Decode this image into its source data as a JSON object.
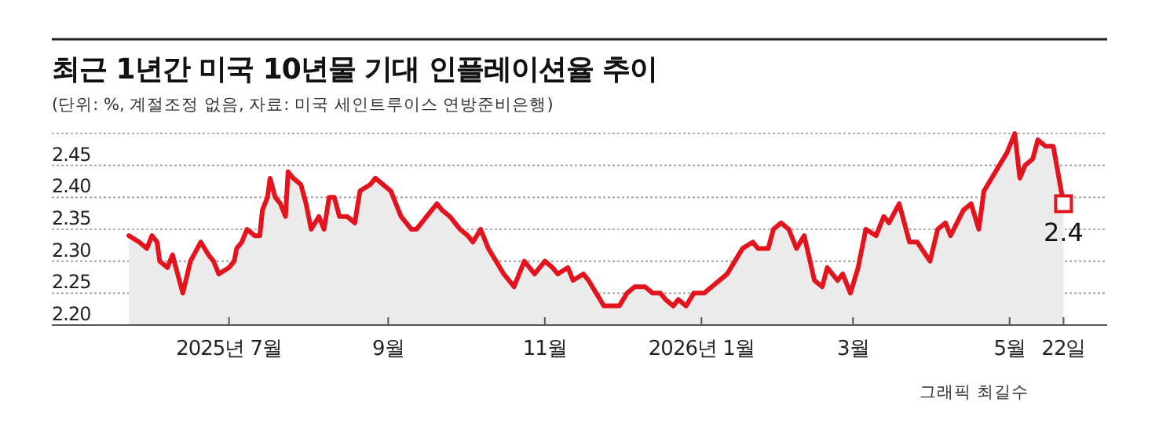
{
  "chart_data": {
    "type": "area",
    "title": "최근 1년간 미국 10년물 기대 인플레이션율 추이",
    "subtitle": "(단위: %, 계절조정 없음, 자료: 미국 세인트루이스 연방준비은행)",
    "annotations": [
      {
        "text": "2.4",
        "x": "2026-05-22",
        "y": 2.39
      },
      "그래픽 최길수"
    ],
    "x": [
      "2025-05-23",
      "2025-05-27",
      "2025-05-30",
      "2025-06-01",
      "2025-06-03",
      "2025-06-04",
      "2025-06-07",
      "2025-06-09",
      "2025-06-13",
      "2025-06-16",
      "2025-06-20",
      "2025-06-23",
      "2025-06-25",
      "2025-06-27",
      "2025-07-01",
      "2025-07-03",
      "2025-07-04",
      "2025-07-06",
      "2025-07-08",
      "2025-07-11",
      "2025-07-13",
      "2025-07-14",
      "2025-07-16",
      "2025-07-17",
      "2025-07-19",
      "2025-07-21",
      "2025-07-23",
      "2025-07-24",
      "2025-07-26",
      "2025-07-29",
      "2025-07-31",
      "2025-08-02",
      "2025-08-05",
      "2025-08-07",
      "2025-08-09",
      "2025-08-11",
      "2025-08-13",
      "2025-08-16",
      "2025-08-19",
      "2025-08-21",
      "2025-08-25",
      "2025-08-27",
      "2025-08-30",
      "2025-09-02",
      "2025-09-06",
      "2025-09-10",
      "2025-09-12",
      "2025-09-16",
      "2025-09-20",
      "2025-09-22",
      "2025-09-25",
      "2025-09-27",
      "2025-09-29",
      "2025-10-02",
      "2025-10-04",
      "2025-10-07",
      "2025-10-10",
      "2025-10-13",
      "2025-10-16",
      "2025-10-20",
      "2025-10-24",
      "2025-10-28",
      "2025-11-01",
      "2025-11-04",
      "2025-11-06",
      "2025-11-10",
      "2025-11-12",
      "2025-11-16",
      "2025-11-18",
      "2025-11-21",
      "2025-11-24",
      "2025-11-27",
      "2025-11-30",
      "2025-12-03",
      "2025-12-06",
      "2025-12-10",
      "2025-12-13",
      "2025-12-16",
      "2025-12-18",
      "2025-12-21",
      "2025-12-23",
      "2025-12-26",
      "2025-12-29",
      "2026-01-02",
      "2026-01-05",
      "2026-01-08",
      "2026-01-11",
      "2026-01-14",
      "2026-01-17",
      "2026-01-21",
      "2026-01-23",
      "2026-01-27",
      "2026-01-29",
      "2026-02-01",
      "2026-02-04",
      "2026-02-07",
      "2026-02-10",
      "2026-02-14",
      "2026-02-17",
      "2026-02-19",
      "2026-02-23",
      "2026-02-25",
      "2026-02-28",
      "2026-03-03",
      "2026-03-06",
      "2026-03-10",
      "2026-03-13",
      "2026-03-15",
      "2026-03-19",
      "2026-03-23",
      "2026-03-26",
      "2026-03-31",
      "2026-04-03",
      "2026-04-06",
      "2026-04-08",
      "2026-04-13",
      "2026-04-16",
      "2026-04-19",
      "2026-04-21",
      "2026-04-24",
      "2026-04-27",
      "2026-04-30",
      "2026-05-03",
      "2026-05-05",
      "2026-05-07",
      "2026-05-10",
      "2026-05-12",
      "2026-05-15",
      "2026-05-18",
      "2026-05-22"
    ],
    "series": [
      {
        "color": "#e3141d",
        "values": [
          2.34,
          2.33,
          2.32,
          2.34,
          2.33,
          2.3,
          2.29,
          2.31,
          2.25,
          2.3,
          2.33,
          2.31,
          2.3,
          2.28,
          2.29,
          2.3,
          2.32,
          2.33,
          2.35,
          2.34,
          2.34,
          2.38,
          2.4,
          2.43,
          2.4,
          2.39,
          2.37,
          2.44,
          2.43,
          2.42,
          2.39,
          2.35,
          2.37,
          2.35,
          2.4,
          2.4,
          2.37,
          2.37,
          2.36,
          2.41,
          2.42,
          2.43,
          2.42,
          2.41,
          2.37,
          2.35,
          2.35,
          2.37,
          2.39,
          2.38,
          2.37,
          2.36,
          2.35,
          2.34,
          2.33,
          2.35,
          2.32,
          2.3,
          2.28,
          2.26,
          2.3,
          2.28,
          2.3,
          2.29,
          2.28,
          2.29,
          2.27,
          2.28,
          2.27,
          2.25,
          2.23,
          2.23,
          2.23,
          2.25,
          2.26,
          2.26,
          2.25,
          2.25,
          2.24,
          2.23,
          2.24,
          2.23,
          2.25,
          2.25,
          2.26,
          2.27,
          2.28,
          2.3,
          2.32,
          2.33,
          2.32,
          2.32,
          2.35,
          2.36,
          2.35,
          2.32,
          2.34,
          2.27,
          2.26,
          2.29,
          2.27,
          2.28,
          2.25,
          2.29,
          2.35,
          2.34,
          2.37,
          2.36,
          2.39,
          2.33,
          2.33,
          2.3,
          2.35,
          2.36,
          2.34,
          2.38,
          2.39,
          2.35,
          2.41,
          2.43,
          2.45,
          2.47,
          2.5,
          2.43,
          2.45,
          2.46,
          2.49,
          2.48,
          2.48,
          2.39
        ]
      }
    ],
    "xlim": [
      "2025-04-23",
      "2026-06-08"
    ],
    "xticks": [
      {
        "value": "2025-07-01",
        "label": "2025년 7월"
      },
      {
        "value": "2025-09-01",
        "label": "9월"
      },
      {
        "value": "2025-11-01",
        "label": "11월"
      },
      {
        "value": "2026-01-01",
        "label": "2026년 1월"
      },
      {
        "value": "2026-03-01",
        "label": "3월"
      },
      {
        "value": "2026-05-01",
        "label": "5월"
      },
      {
        "value": "2026-05-22",
        "label": "22일"
      }
    ],
    "ylim": [
      2.2,
      2.5
    ],
    "yticks": [
      {
        "value": 2.2,
        "label": "2.20"
      },
      {
        "value": 2.25,
        "label": "2.25"
      },
      {
        "value": 2.3,
        "label": "2.30"
      },
      {
        "value": 2.35,
        "label": "2.35"
      },
      {
        "value": 2.4,
        "label": "2.40"
      },
      {
        "value": 2.45,
        "label": "2.45"
      },
      {
        "value": 2.5,
        "label": null
      }
    ],
    "grid": "y"
  }
}
